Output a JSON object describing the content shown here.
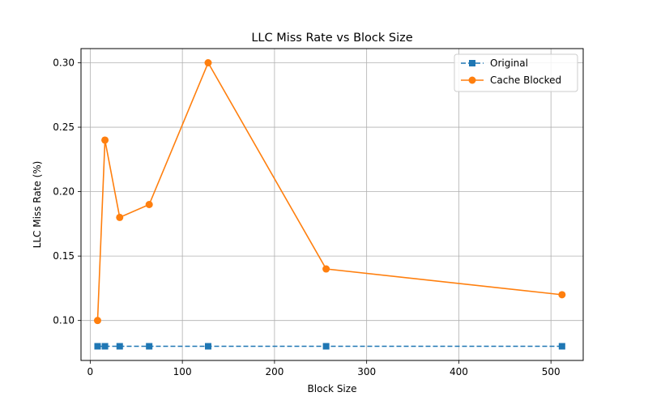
{
  "chart_data": {
    "type": "line",
    "title": "LLC Miss Rate vs Block Size",
    "xlabel": "Block Size",
    "ylabel": "LLC Miss Rate (%)",
    "xlim": [
      -10,
      535
    ],
    "ylim": [
      0.069,
      0.311
    ],
    "xticks": [
      0,
      100,
      200,
      300,
      400,
      500
    ],
    "yticks": [
      0.1,
      0.15,
      0.2,
      0.25,
      0.3
    ],
    "xtick_labels": [
      "0",
      "100",
      "200",
      "300",
      "400",
      "500"
    ],
    "ytick_labels": [
      "0.10",
      "0.15",
      "0.20",
      "0.25",
      "0.30"
    ],
    "grid": true,
    "legend_position": "top-right",
    "x": [
      8,
      16,
      32,
      64,
      128,
      256,
      512
    ],
    "series": [
      {
        "name": "Original",
        "values": [
          0.08,
          0.08,
          0.08,
          0.08,
          0.08,
          0.08,
          0.08
        ],
        "color": "#1f77b4",
        "linestyle": "dashed",
        "marker": "square"
      },
      {
        "name": "Cache Blocked",
        "values": [
          0.1,
          0.24,
          0.18,
          0.19,
          0.3,
          0.14,
          0.12
        ],
        "color": "#ff7f0e",
        "linestyle": "solid",
        "marker": "circle"
      }
    ]
  }
}
